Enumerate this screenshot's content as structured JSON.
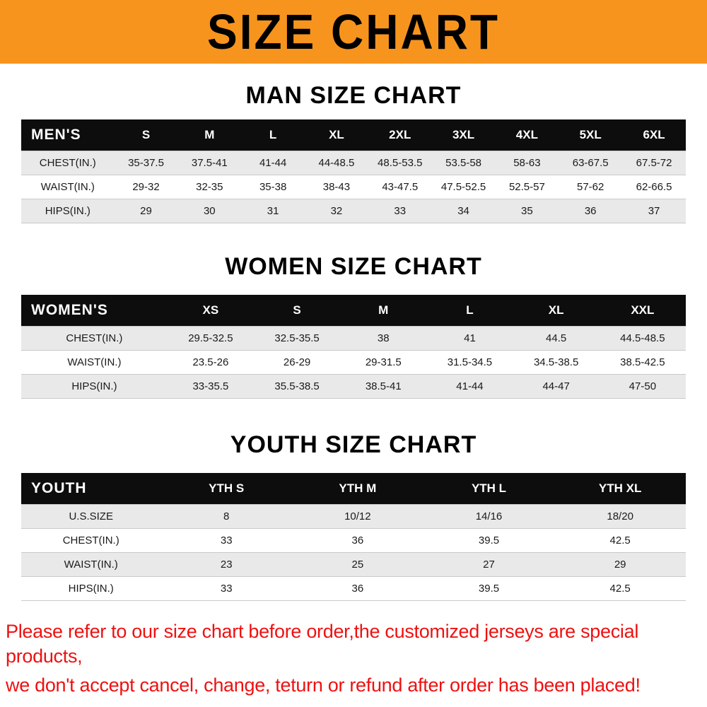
{
  "banner": {
    "title": "SIZE CHART",
    "bg_color": "#F7941E",
    "text_color": "#000000"
  },
  "sections": [
    {
      "title": "MAN SIZE CHART",
      "table": {
        "header_label": "MEN'S",
        "columns": [
          "S",
          "M",
          "L",
          "XL",
          "2XL",
          "3XL",
          "4XL",
          "5XL",
          "6XL"
        ],
        "rows": [
          {
            "label": "CHEST(IN.)",
            "values": [
              "35-37.5",
              "37.5-41",
              "41-44",
              "44-48.5",
              "48.5-53.5",
              "53.5-58",
              "58-63",
              "63-67.5",
              "67.5-72"
            ]
          },
          {
            "label": "WAIST(IN.)",
            "values": [
              "29-32",
              "32-35",
              "35-38",
              "38-43",
              "43-47.5",
              "47.5-52.5",
              "52.5-57",
              "57-62",
              "62-66.5"
            ]
          },
          {
            "label": "HIPS(IN.)",
            "values": [
              "29",
              "30",
              "31",
              "32",
              "33",
              "34",
              "35",
              "36",
              "37"
            ]
          }
        ]
      }
    },
    {
      "title": "WOMEN SIZE CHART",
      "table": {
        "header_label": "WOMEN'S",
        "columns": [
          "XS",
          "S",
          "M",
          "L",
          "XL",
          "XXL"
        ],
        "rows": [
          {
            "label": "CHEST(IN.)",
            "values": [
              "29.5-32.5",
              "32.5-35.5",
              "38",
              "41",
              "44.5",
              "44.5-48.5"
            ]
          },
          {
            "label": "WAIST(IN.)",
            "values": [
              "23.5-26",
              "26-29",
              "29-31.5",
              "31.5-34.5",
              "34.5-38.5",
              "38.5-42.5"
            ]
          },
          {
            "label": "HIPS(IN.)",
            "values": [
              "33-35.5",
              "35.5-38.5",
              "38.5-41",
              "41-44",
              "44-47",
              "47-50"
            ]
          }
        ]
      }
    },
    {
      "title": "YOUTH SIZE CHART",
      "table": {
        "header_label": "YOUTH",
        "columns": [
          "YTH S",
          "YTH M",
          "YTH L",
          "YTH XL"
        ],
        "rows": [
          {
            "label": "U.S.SIZE",
            "values": [
              "8",
              "10/12",
              "14/16",
              "18/20"
            ]
          },
          {
            "label": "CHEST(IN.)",
            "values": [
              "33",
              "36",
              "39.5",
              "42.5"
            ]
          },
          {
            "label": "WAIST(IN.)",
            "values": [
              "23",
              "25",
              "27",
              "29"
            ]
          },
          {
            "label": "HIPS(IN.)",
            "values": [
              "33",
              "36",
              "39.5",
              "42.5"
            ]
          }
        ]
      }
    }
  ],
  "footer": {
    "color": "#EE1111",
    "lines": [
      "Please refer to our size chart before order,the customized jerseys are special products,",
      "we don't accept cancel, change, teturn or refund after order has been placed!"
    ]
  }
}
